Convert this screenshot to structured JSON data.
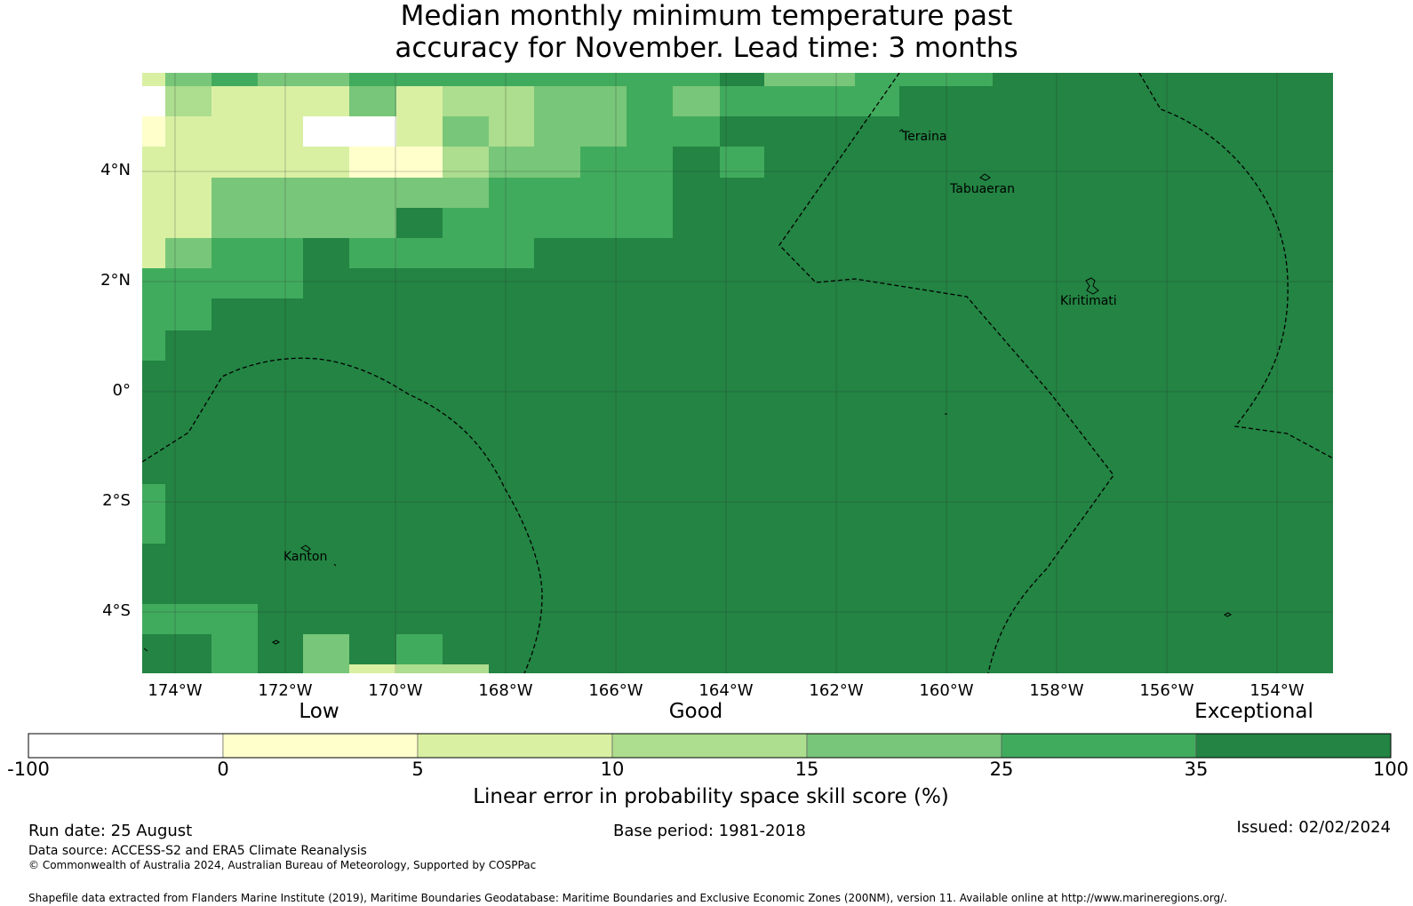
{
  "title": [
    "Median monthly minimum temperature past",
    "accuracy for November. Lead time: 3 months"
  ],
  "map": {
    "lon_ticks": [
      "174°W",
      "172°W",
      "170°W",
      "168°W",
      "166°W",
      "164°W",
      "162°W",
      "160°W",
      "158°W",
      "156°W",
      "154°W"
    ],
    "lat_ticks": [
      "4°N",
      "2°N",
      "0°",
      "2°S",
      "4°S"
    ],
    "places": [
      "Teraina",
      "Tabuaeran",
      "Kiritimati",
      "Kanton"
    ]
  },
  "colorbar": {
    "category_labels": [
      "Low",
      "Good",
      "Exceptional"
    ],
    "boundaries": [
      "-100",
      "0",
      "5",
      "10",
      "15",
      "25",
      "35",
      "100"
    ],
    "colors": [
      "#ffffff",
      "#ffffcc",
      "#d9f0a3",
      "#addd8e",
      "#78c679",
      "#41ab5d",
      "#238443"
    ],
    "label": "Linear error in probability space skill score (%)"
  },
  "footer": {
    "run_date": "Run date: 25 August",
    "base_period": "Base period: 1981-2018",
    "issued": "Issued: 02/02/2024",
    "data_source": "Data source: ACCESS-S2 and ERA5 Climate Reanalysis",
    "copyright": "© Commonwealth of Australia 2024, Australian Bureau of Meteorology, Supported by COSPPac",
    "shapefile": "Shapefile data extracted from Flanders Marine Institute (2019), Maritime Boundaries Geodatabase: Maritime Boundaries and Exclusive Economic Zones (200NM), version 11. Available online at http://www.marineregions.org/."
  }
}
